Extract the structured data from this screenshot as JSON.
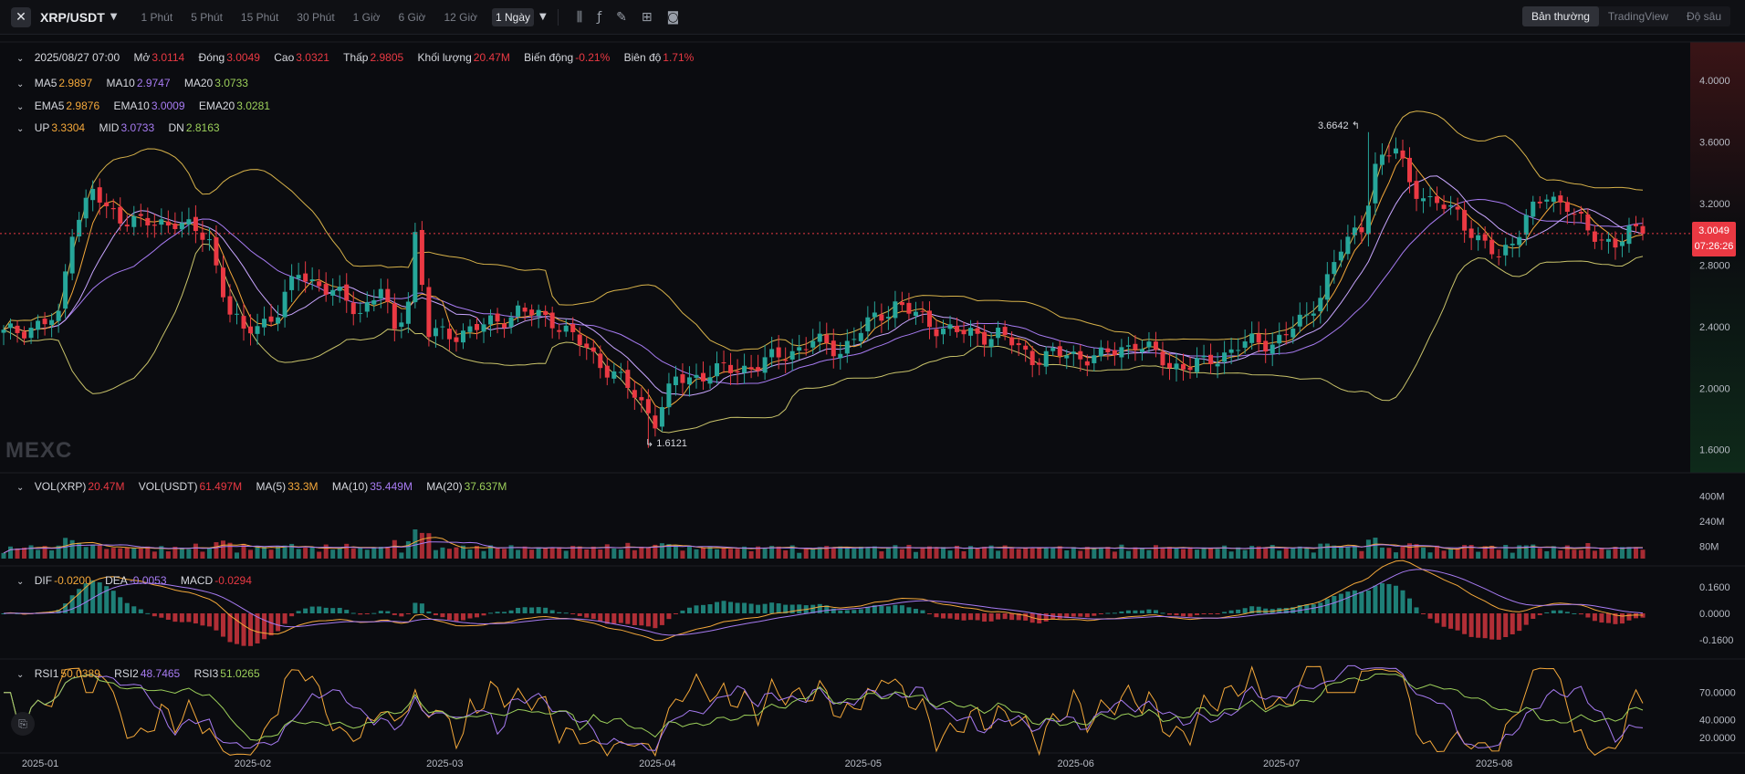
{
  "header": {
    "symbol": "XRP/USDT",
    "timeframes": [
      "1 Phút",
      "5 Phút",
      "15 Phút",
      "30 Phút",
      "1 Giờ",
      "6 Giờ",
      "12 Giờ"
    ],
    "active_timeframe": "1 Ngày",
    "modes": [
      "Bản thường",
      "TradingView",
      "Độ sâu"
    ],
    "active_mode": "Bản thường",
    "icons": [
      "indicator-icon",
      "function-icon",
      "pencil-icon",
      "layout-icon",
      "camera-icon"
    ]
  },
  "ohlc": {
    "date": "2025/08/27 07:00",
    "open_label": "Mở",
    "open": "3.0114",
    "close_label": "Đóng",
    "close": "3.0049",
    "high_label": "Cao",
    "high": "3.0321",
    "low_label": "Thấp",
    "low": "2.9805",
    "volume_label": "Khối lượng",
    "volume": "20.47M",
    "change_label": "Biến động",
    "change": "-0.21%",
    "amplitude_label": "Biên độ",
    "amplitude": "1.71%"
  },
  "ma": {
    "ma5_label": "MA5",
    "ma5": "2.9897",
    "ma10_label": "MA10",
    "ma10": "2.9747",
    "ma20_label": "MA20",
    "ma20": "3.0733"
  },
  "ema": {
    "ema5_label": "EMA5",
    "ema5": "2.9876",
    "ema10_label": "EMA10",
    "ema10": "3.0009",
    "ema20_label": "EMA20",
    "ema20": "3.0281"
  },
  "boll": {
    "up_label": "UP",
    "up": "3.3304",
    "mid_label": "MID",
    "mid": "3.0733",
    "dn_label": "DN",
    "dn": "2.8163"
  },
  "vol": {
    "vol_label": "VOL(XRP)",
    "vol": "20.47M",
    "volusdt_label": "VOL(USDT)",
    "volusdt": "61.497M",
    "ma5_label": "MA(5)",
    "ma5": "33.3M",
    "ma10_label": "MA(10)",
    "ma10": "35.449M",
    "ma20_label": "MA(20)",
    "ma20": "37.637M"
  },
  "macd": {
    "dif_label": "DIF",
    "dif": "-0.0200",
    "dea_label": "DEA",
    "dea": "-0.0053",
    "macd_label": "MACD",
    "macd": "-0.0294"
  },
  "rsi": {
    "rsi1_label": "RSI1",
    "rsi1": "50.0389",
    "rsi2_label": "RSI2",
    "rsi2": "48.7465",
    "rsi3_label": "RSI3",
    "rsi3": "51.0265"
  },
  "price_tag": {
    "price": "3.0049",
    "countdown": "07:26:26"
  },
  "high_marker": "3.6642",
  "low_marker": "1.6121",
  "watermark": "MEXC",
  "colors": {
    "up": "#26a69a",
    "down": "#ea3943",
    "bg": "#0b0c10",
    "ma5": "#f4a83a",
    "ma10": "#a77bf2",
    "ma20": "#9ccf5a"
  },
  "chart_data": {
    "type": "candlestick",
    "price_axis_ticks": [
      "4.0000",
      "3.6000",
      "3.2000",
      "2.8000",
      "2.4000",
      "2.0000",
      "1.6000"
    ],
    "price_ylim": [
      1.45,
      4.25
    ],
    "volume_axis_ticks": [
      "400M",
      "240M",
      "80M"
    ],
    "macd_axis_ticks": [
      "0.1600",
      "0.0000",
      "-0.1600"
    ],
    "rsi_axis_ticks": [
      "70.0000",
      "40.0000",
      "20.0000"
    ],
    "x_ticks": [
      "2025-01",
      "2025-02",
      "2025-03",
      "2025-04",
      "2025-05",
      "2025-06",
      "2025-07",
      "2025-08"
    ],
    "x_tick_day_index": [
      0,
      31,
      59,
      90,
      120,
      151,
      181,
      212
    ],
    "close_anchors": [
      [
        0,
        2.35
      ],
      [
        8,
        2.45
      ],
      [
        10,
        3.05
      ],
      [
        13,
        3.28
      ],
      [
        15,
        3.15
      ],
      [
        22,
        3.05
      ],
      [
        25,
        3.1
      ],
      [
        30,
        2.95
      ],
      [
        33,
        2.5
      ],
      [
        35,
        2.35
      ],
      [
        40,
        2.5
      ],
      [
        43,
        2.75
      ],
      [
        47,
        2.65
      ],
      [
        52,
        2.5
      ],
      [
        55,
        2.65
      ],
      [
        57,
        2.35
      ],
      [
        59,
        2.6
      ],
      [
        60,
        3.0
      ],
      [
        62,
        2.35
      ],
      [
        65,
        2.35
      ],
      [
        70,
        2.4
      ],
      [
        75,
        2.5
      ],
      [
        80,
        2.45
      ],
      [
        85,
        2.25
      ],
      [
        90,
        2.05
      ],
      [
        95,
        1.8
      ],
      [
        98,
        2.05
      ],
      [
        103,
        2.1
      ],
      [
        110,
        2.15
      ],
      [
        118,
        2.3
      ],
      [
        122,
        2.25
      ],
      [
        127,
        2.45
      ],
      [
        130,
        2.55
      ],
      [
        135,
        2.42
      ],
      [
        140,
        2.35
      ],
      [
        145,
        2.35
      ],
      [
        150,
        2.2
      ],
      [
        155,
        2.22
      ],
      [
        160,
        2.2
      ],
      [
        165,
        2.3
      ],
      [
        170,
        2.15
      ],
      [
        175,
        2.15
      ],
      [
        180,
        2.28
      ],
      [
        185,
        2.3
      ],
      [
        190,
        2.45
      ],
      [
        195,
        2.9
      ],
      [
        198,
        3.05
      ],
      [
        200,
        3.45
      ],
      [
        203,
        3.55
      ],
      [
        205,
        3.35
      ],
      [
        208,
        3.2
      ],
      [
        212,
        3.15
      ],
      [
        215,
        2.95
      ],
      [
        218,
        2.85
      ],
      [
        222,
        3.1
      ],
      [
        225,
        3.25
      ],
      [
        228,
        3.2
      ],
      [
        231,
        3.0
      ],
      [
        235,
        2.95
      ],
      [
        237,
        3.0
      ],
      [
        239,
        3.0049
      ]
    ],
    "high_point": {
      "day": 199,
      "value": 3.6642
    },
    "low_point": {
      "day": 94,
      "value": 1.6121
    },
    "last_close": 3.0049
  }
}
